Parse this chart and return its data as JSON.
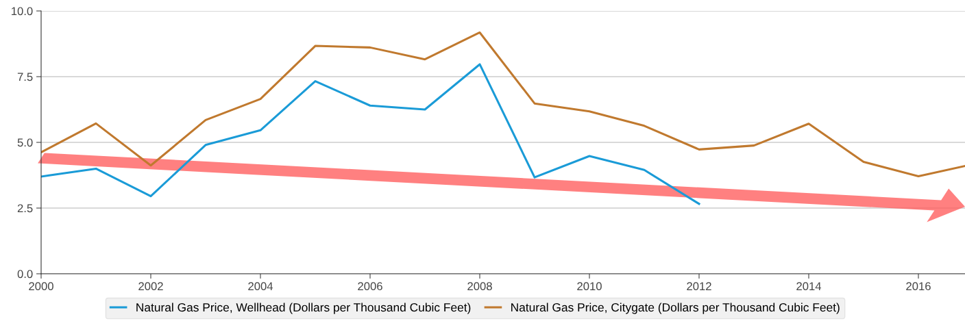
{
  "chart_data": {
    "type": "line",
    "series": [
      {
        "name": "Natural Gas Price, Wellhead (Dollars per Thousand Cubic Feet)",
        "color": "#1a9bd7",
        "x": [
          2000,
          2001,
          2002,
          2003,
          2004,
          2005,
          2006,
          2007,
          2008,
          2009,
          2010,
          2011,
          2012
        ],
        "values": [
          3.7,
          4.0,
          2.95,
          4.9,
          5.46,
          7.33,
          6.4,
          6.25,
          7.97,
          3.67,
          4.48,
          3.95,
          2.66
        ]
      },
      {
        "name": "Natural Gas Price, Citygate (Dollars per Thousand Cubic Feet)",
        "color": "#c0792e",
        "x": [
          2000,
          2001,
          2002,
          2003,
          2004,
          2005,
          2006,
          2007,
          2008,
          2009,
          2010,
          2011,
          2012,
          2013,
          2014,
          2015,
          2016,
          2016.85
        ],
        "values": [
          4.62,
          5.72,
          4.12,
          5.85,
          6.65,
          8.67,
          8.61,
          8.16,
          9.18,
          6.48,
          6.18,
          5.63,
          4.73,
          4.88,
          5.71,
          4.26,
          3.71,
          4.1
        ]
      }
    ],
    "xlim": [
      2000,
      2016.85
    ],
    "xticks": [
      2000,
      2002,
      2004,
      2006,
      2008,
      2010,
      2012,
      2014,
      2016
    ],
    "ylim": [
      0,
      10
    ],
    "yticks": [
      {
        "value": 0,
        "label": "0.0"
      },
      2.5,
      {
        "value": 5,
        "label": "5.0"
      },
      7.5,
      {
        "value": 10,
        "label": "10.0"
      }
    ],
    "grid": "y",
    "legend": "bottom",
    "marker": "none",
    "line_style": "solid"
  }
}
